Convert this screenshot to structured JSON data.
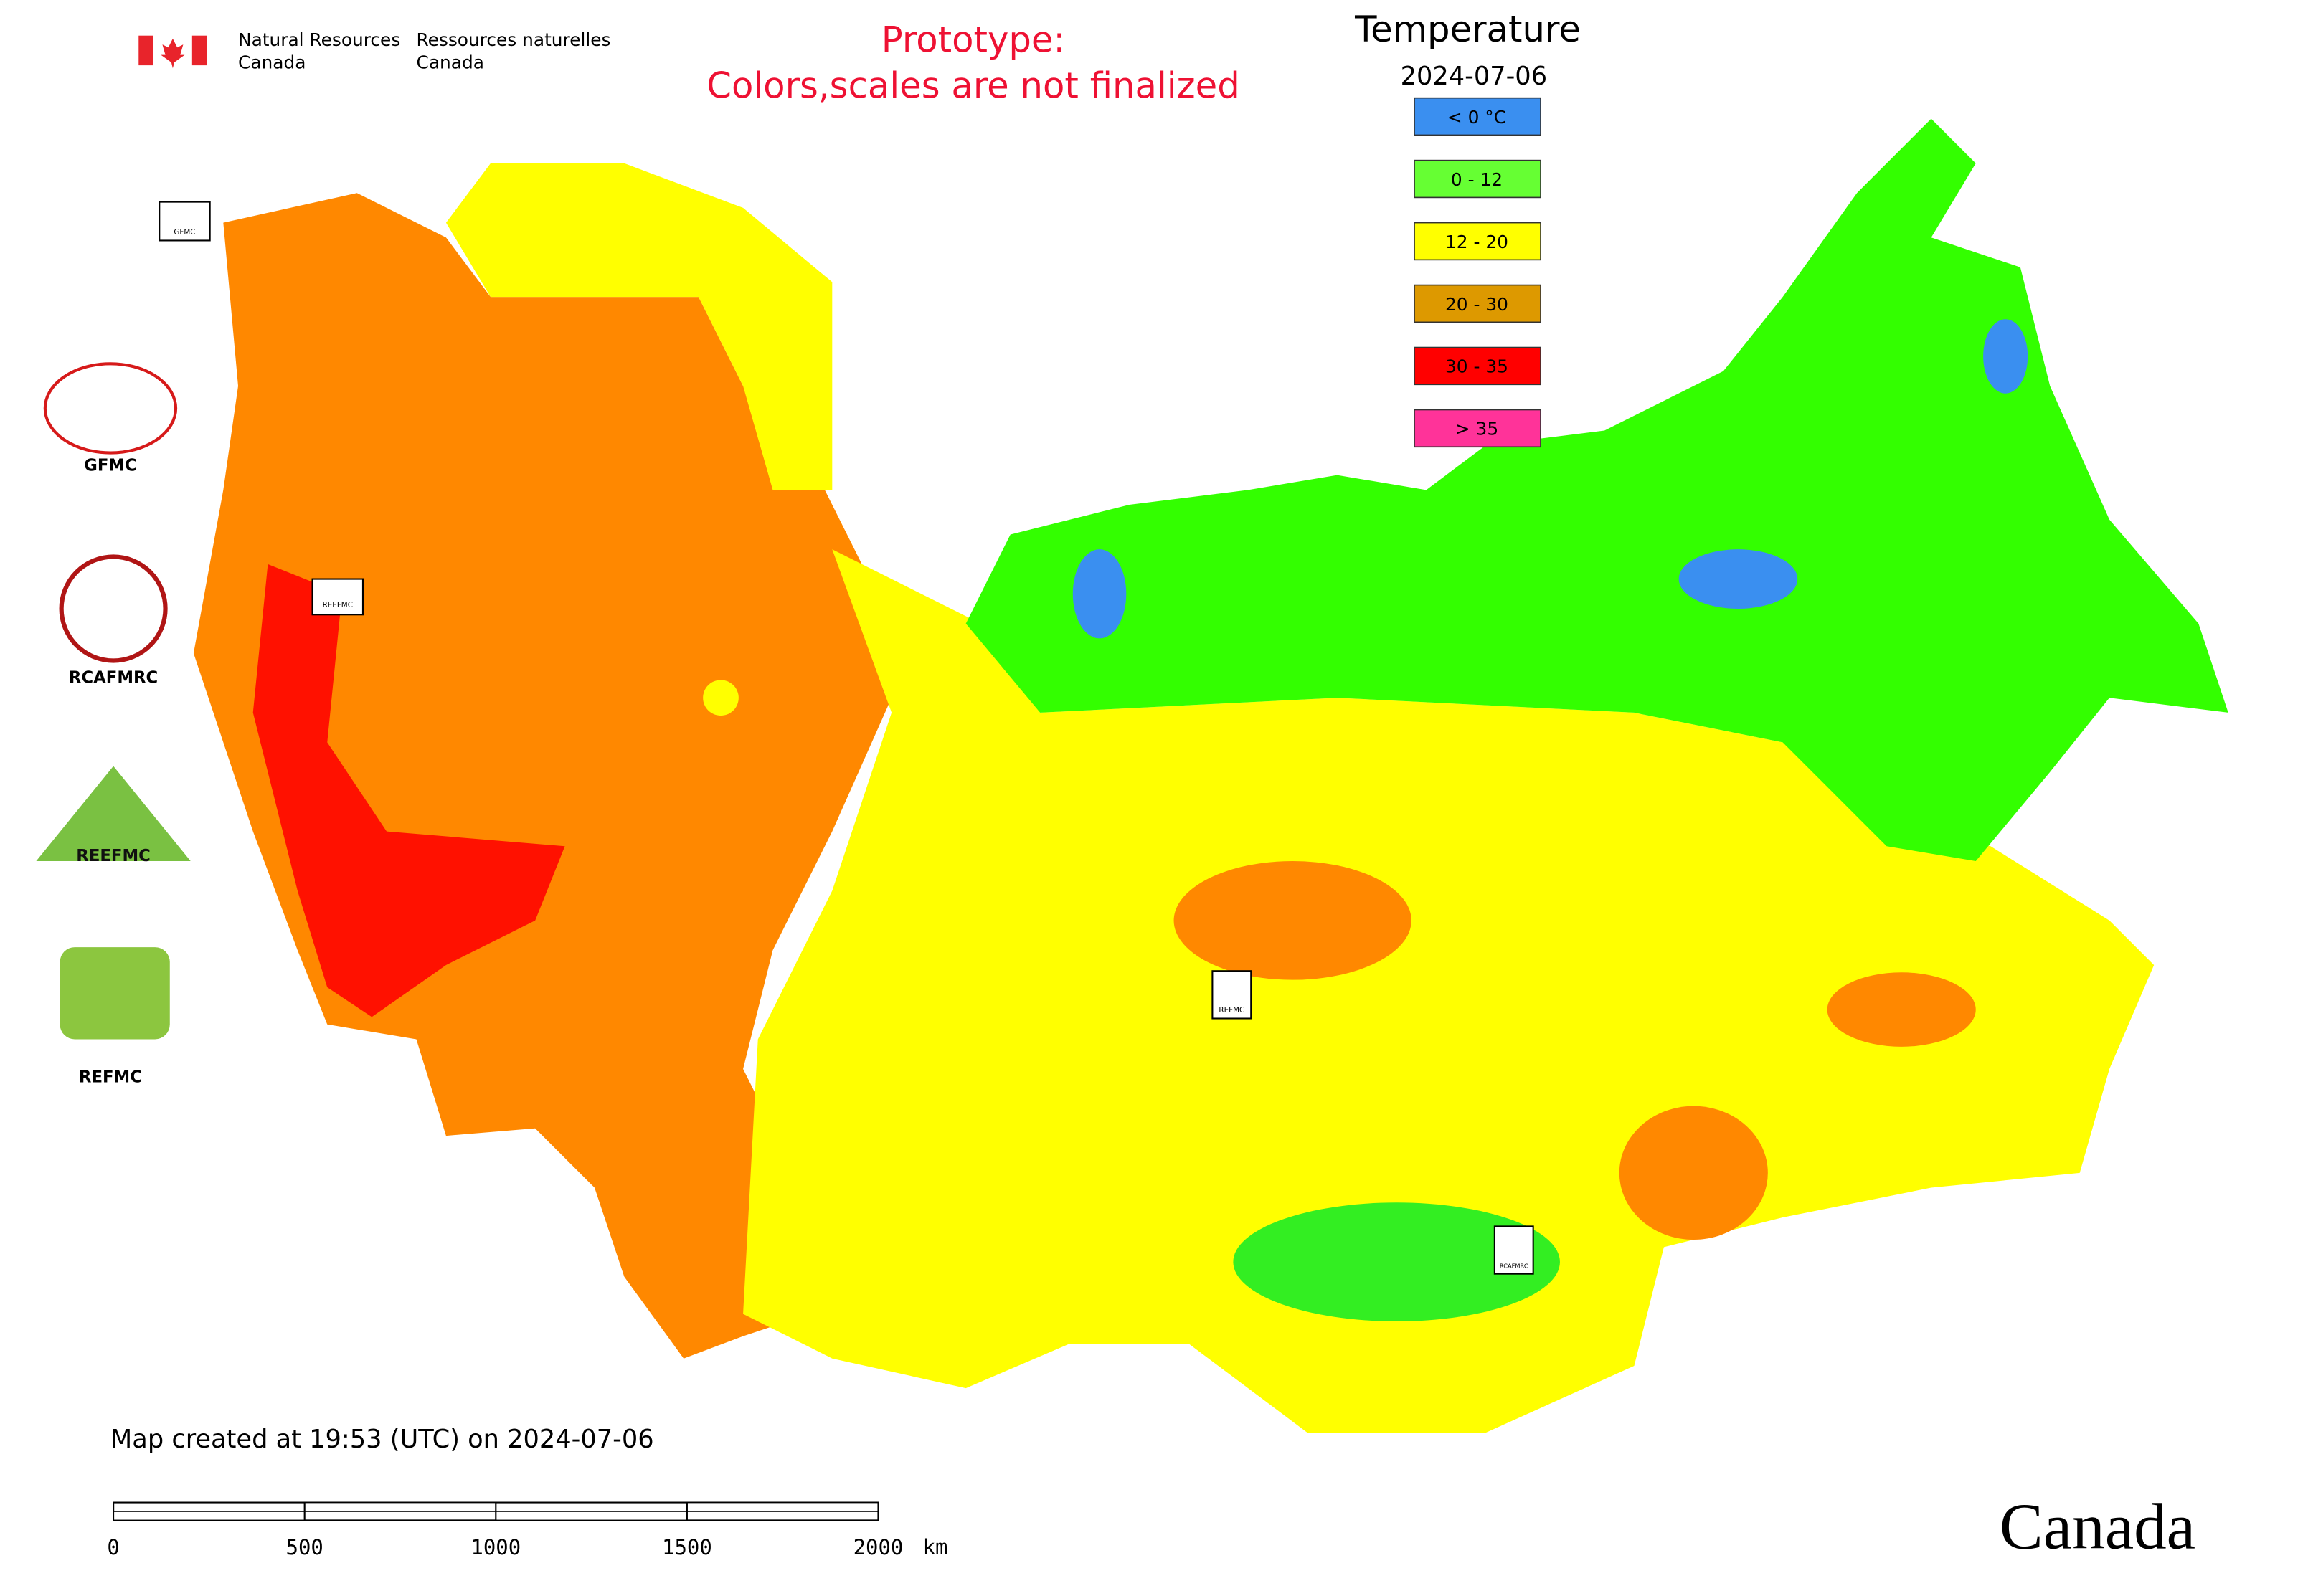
{
  "header": {
    "agency_en": [
      "Natural Resources",
      "Canada"
    ],
    "agency_fr": [
      "Ressources naturelles",
      "Canada"
    ],
    "notice": [
      "Prototype:",
      "Colors,scales are not finalized"
    ]
  },
  "legend": {
    "title": "Temperature",
    "date": "2024-07-06",
    "items": [
      {
        "label": "< 0 °C",
        "color": "#3a8ff0"
      },
      {
        "label": "0 - 12",
        "color": "#66ff33"
      },
      {
        "label": "12 - 20",
        "color": "#ffff00"
      },
      {
        "label": "20 - 30",
        "color": "#dd9900"
      },
      {
        "label": "30 - 35",
        "color": "#ff0000"
      },
      {
        "label": "> 35",
        "color": "#ff3399"
      }
    ]
  },
  "logos": [
    "GFMC",
    "RCAFMRC",
    "REEFMC",
    "REFMC"
  ],
  "footer": "Map created at 19:53 (UTC) on 2024-07-06",
  "scale_bar": {
    "ticks": [
      0,
      500,
      1000,
      1500,
      2000
    ],
    "unit": "km"
  },
  "wordmark": "Canada"
}
